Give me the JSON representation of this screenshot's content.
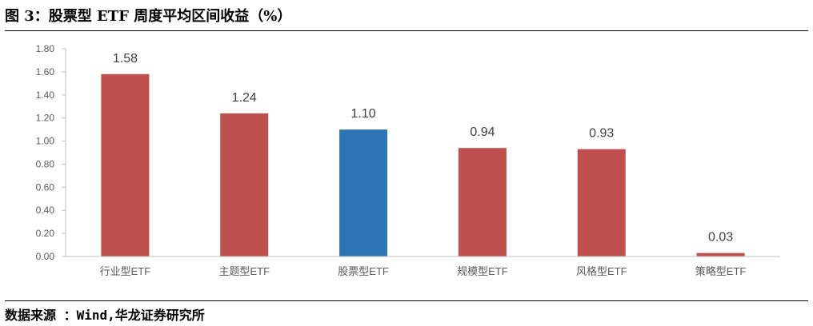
{
  "header": {
    "title": "图 3：股票型 ETF 周度平均区间收益（%）"
  },
  "footer": {
    "source": "数据来源 ：Wind,华龙证券研究所"
  },
  "chart_data": {
    "type": "bar",
    "title": "图 3：股票型 ETF 周度平均区间收益（%）",
    "xlabel": "",
    "ylabel": "",
    "categories": [
      "行业型ETF",
      "主题型ETF",
      "股票型ETF",
      "规模型ETF",
      "风格型ETF",
      "策略型ETF"
    ],
    "values": [
      1.58,
      1.24,
      1.1,
      0.94,
      0.93,
      0.03
    ],
    "data_labels": [
      "1.58",
      "1.24",
      "1.10",
      "0.94",
      "0.93",
      "0.03"
    ],
    "ylim": [
      0,
      1.8
    ],
    "yticks": [
      0,
      0.2,
      0.4,
      0.6,
      0.8,
      1.0,
      1.2,
      1.4,
      1.6,
      1.8
    ],
    "ytick_labels": [
      "0.00",
      "0.20",
      "0.40",
      "0.60",
      "0.80",
      "1.00",
      "1.20",
      "1.40",
      "1.60",
      "1.80"
    ],
    "bar_colors": [
      "#C0504D",
      "#C0504D",
      "#2E75B6",
      "#C0504D",
      "#C0504D",
      "#C0504D"
    ],
    "grid": false,
    "legend": "none"
  }
}
